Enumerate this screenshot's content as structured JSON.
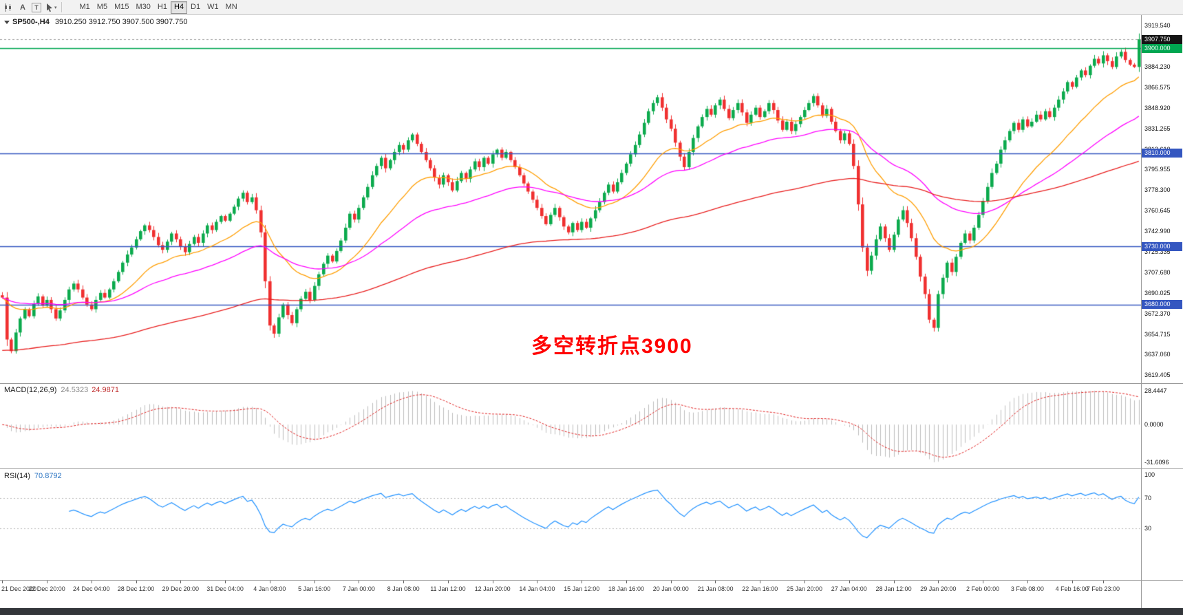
{
  "toolbar": {
    "icon_a": "A",
    "icon_t": "T",
    "dropdown_caret": "▾",
    "timeframes": [
      {
        "label": "M1",
        "active": false
      },
      {
        "label": "M5",
        "active": false
      },
      {
        "label": "M15",
        "active": false
      },
      {
        "label": "M30",
        "active": false
      },
      {
        "label": "H1",
        "active": false
      },
      {
        "label": "H4",
        "active": true
      },
      {
        "label": "D1",
        "active": false
      },
      {
        "label": "W1",
        "active": false
      },
      {
        "label": "MN",
        "active": false
      }
    ]
  },
  "chart": {
    "title_symbol": "SP500-,H4",
    "title_ohlc": "3910.250 3912.750 3907.500 3907.750",
    "annotation_text": "多空转折点3900",
    "annotation_color": "#ff0000"
  },
  "colors": {
    "candle_up": "#0caa4d",
    "candle_down": "#f03030",
    "background": "#ffffff",
    "toolbar_bg": "#f2f2f2",
    "separator": "#9b9b9b",
    "axis_text": "#111111"
  },
  "chart_data": {
    "type": "candlestick",
    "symbol": "SP500-",
    "timeframe": "H4",
    "last_candle": {
      "open": 3910.25,
      "high": 3912.75,
      "low": 3907.5,
      "close": 3907.75
    },
    "price_axis": {
      "min": 3612.5,
      "max": 3928.5,
      "tick_first": 3619.405,
      "tick_step": 17.655,
      "tick_count": 18
    },
    "hlines": [
      {
        "price": 3900,
        "label": "3900.000",
        "color": "#00a651"
      },
      {
        "price": 3810,
        "label": "3810.000",
        "color": "#3456c0"
      },
      {
        "price": 3730,
        "label": "3730.000",
        "color": "#3456c0"
      },
      {
        "price": 3680,
        "label": "3680.000",
        "color": "#3456c0"
      }
    ],
    "bid": {
      "price": 3907.75,
      "label": "3907.750"
    },
    "moving_averages": [
      {
        "name": "ma-fast",
        "color": "#ff9d00",
        "k": 0.0909,
        "seed": null
      },
      {
        "name": "ma-mid",
        "color": "#ff00ff",
        "k": 0.0392,
        "seed": null
      },
      {
        "name": "ma-slow",
        "color": "#e81d1d",
        "k": 0.0132,
        "seed": 3640
      }
    ],
    "macd": {
      "title": "MACD(12,26,9)",
      "value_main": "24.5323",
      "value_signal": "24.9871",
      "axis_max": 28.4447,
      "axis_min": -31.6096,
      "axis_max_label": "28.4447",
      "axis_zero_label": "0.0000",
      "axis_min_label": "-31.6096",
      "bar_color": "#bdbdbd",
      "signal_color": "#e02020"
    },
    "rsi": {
      "title": "RSI(14)",
      "value": "70.8792",
      "period": 14,
      "color": "#1e90ff",
      "levels": [
        70,
        30
      ],
      "axis_labels": [
        100,
        70,
        30
      ]
    },
    "time_labels": [
      {
        "i": 0,
        "text": "21 Dec 2020"
      },
      {
        "i": 10,
        "text": "22 Dec 20:00"
      },
      {
        "i": 20,
        "text": "24 Dec 04:00"
      },
      {
        "i": 30,
        "text": "28 Dec 12:00"
      },
      {
        "i": 40,
        "text": "29 Dec 20:00"
      },
      {
        "i": 50,
        "text": "31 Dec 04:00"
      },
      {
        "i": 60,
        "text": "4 Jan 08:00"
      },
      {
        "i": 70,
        "text": "5 Jan 16:00"
      },
      {
        "i": 80,
        "text": "7 Jan 00:00"
      },
      {
        "i": 90,
        "text": "8 Jan 08:00"
      },
      {
        "i": 100,
        "text": "11 Jan 12:00"
      },
      {
        "i": 110,
        "text": "12 Jan 20:00"
      },
      {
        "i": 120,
        "text": "14 Jan 04:00"
      },
      {
        "i": 130,
        "text": "15 Jan 12:00"
      },
      {
        "i": 140,
        "text": "18 Jan 16:00"
      },
      {
        "i": 150,
        "text": "20 Jan 00:00"
      },
      {
        "i": 160,
        "text": "21 Jan 08:00"
      },
      {
        "i": 170,
        "text": "22 Jan 16:00"
      },
      {
        "i": 180,
        "text": "25 Jan 20:00"
      },
      {
        "i": 190,
        "text": "27 Jan 04:00"
      },
      {
        "i": 200,
        "text": "28 Jan 12:00"
      },
      {
        "i": 210,
        "text": "29 Jan 20:00"
      },
      {
        "i": 220,
        "text": "2 Feb 00:00"
      },
      {
        "i": 230,
        "text": "3 Feb 08:00"
      },
      {
        "i": 240,
        "text": "4 Feb 16:00"
      },
      {
        "i": 247,
        "text": "7 Feb 23:00"
      }
    ],
    "closes": [
      3686,
      3650,
      3640,
      3656,
      3668,
      3676,
      3670,
      3681,
      3687,
      3679,
      3684,
      3676,
      3668,
      3675,
      3684,
      3693,
      3698,
      3693,
      3686,
      3680,
      3676,
      3684,
      3690,
      3686,
      3693,
      3700,
      3708,
      3716,
      3723,
      3729,
      3736,
      3743,
      3748,
      3744,
      3738,
      3731,
      3727,
      3734,
      3741,
      3736,
      3730,
      3725,
      3732,
      3738,
      3733,
      3741,
      3748,
      3744,
      3751,
      3756,
      3752,
      3758,
      3764,
      3771,
      3776,
      3768,
      3772,
      3761,
      3742,
      3700,
      3662,
      3655,
      3669,
      3680,
      3671,
      3664,
      3676,
      3685,
      3691,
      3684,
      3696,
      3706,
      3715,
      3722,
      3717,
      3726,
      3735,
      3746,
      3758,
      3753,
      3763,
      3772,
      3781,
      3791,
      3799,
      3806,
      3797,
      3804,
      3811,
      3817,
      3813,
      3821,
      3826,
      3818,
      3811,
      3804,
      3797,
      3789,
      3783,
      3791,
      3785,
      3778,
      3786,
      3793,
      3788,
      3796,
      3803,
      3798,
      3806,
      3801,
      3809,
      3813,
      3806,
      3811,
      3804,
      3798,
      3791,
      3784,
      3777,
      3770,
      3763,
      3756,
      3749,
      3757,
      3763,
      3755,
      3747,
      3742,
      3750,
      3744,
      3751,
      3746,
      3754,
      3761,
      3768,
      3776,
      3783,
      3777,
      3785,
      3793,
      3801,
      3809,
      3817,
      3826,
      3836,
      3846,
      3853,
      3858,
      3849,
      3839,
      3831,
      3819,
      3807,
      3798,
      3811,
      3823,
      3833,
      3841,
      3848,
      3843,
      3851,
      3856,
      3848,
      3840,
      3847,
      3853,
      3845,
      3836,
      3843,
      3849,
      3841,
      3846,
      3853,
      3847,
      3838,
      3830,
      3837,
      3829,
      3835,
      3841,
      3847,
      3853,
      3859,
      3851,
      3842,
      3848,
      3837,
      3829,
      3821,
      3827,
      3818,
      3799,
      3766,
      3729,
      3709,
      3722,
      3736,
      3747,
      3737,
      3727,
      3740,
      3753,
      3761,
      3750,
      3737,
      3721,
      3704,
      3689,
      3667,
      3660,
      3689,
      3703,
      3716,
      3708,
      3721,
      3733,
      3741,
      3735,
      3746,
      3757,
      3769,
      3781,
      3793,
      3801,
      3813,
      3821,
      3829,
      3836,
      3830,
      3839,
      3833,
      3837,
      3843,
      3839,
      3846,
      3841,
      3849,
      3856,
      3863,
      3871,
      3867,
      3875,
      3881,
      3877,
      3885,
      3891,
      3887,
      3894,
      3889,
      3884,
      3893,
      3897,
      3890,
      3886,
      3884,
      3907.75
    ]
  }
}
